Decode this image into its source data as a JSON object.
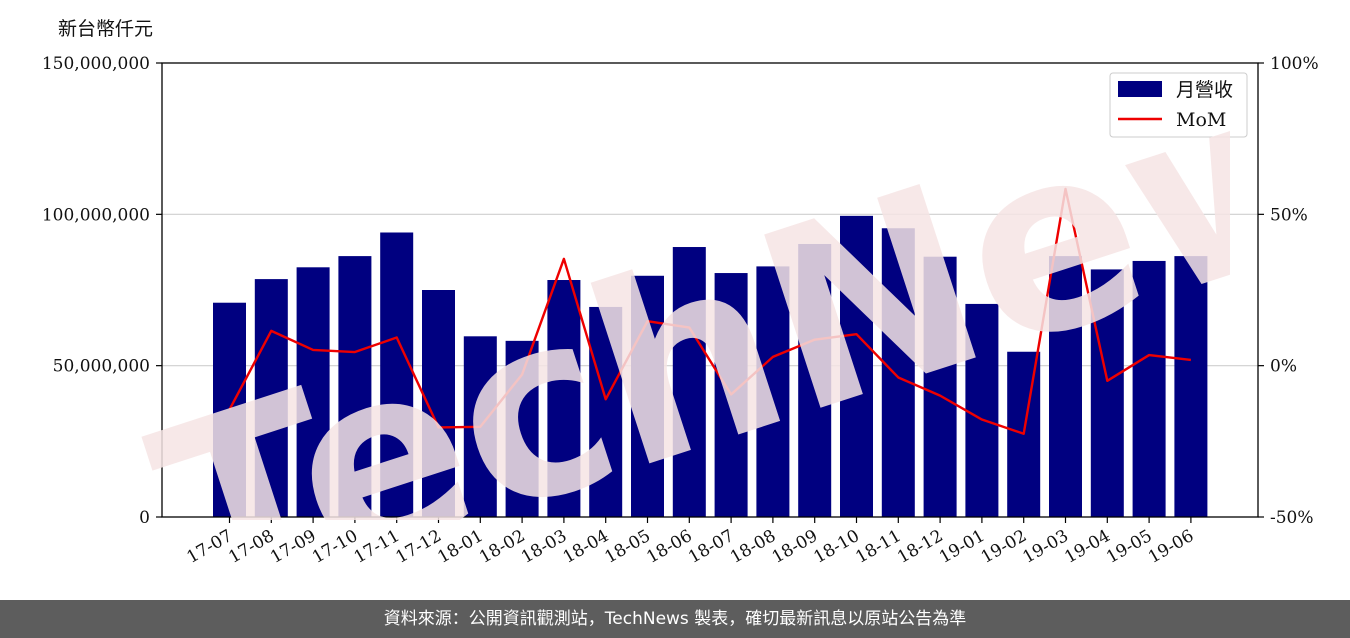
{
  "unit_label": "新台幣仟元",
  "footer": "資料來源：公開資訊觀測站，TechNews 製表，確切最新訊息以原站公告為準",
  "watermark": "TechNews",
  "chart_data": {
    "type": "bar",
    "categories": [
      "17-07",
      "17-08",
      "17-09",
      "17-10",
      "17-11",
      "17-12",
      "18-01",
      "18-02",
      "18-03",
      "18-04",
      "18-05",
      "18-06",
      "18-07",
      "18-08",
      "18-09",
      "18-10",
      "18-11",
      "18-12",
      "19-01",
      "19-02",
      "19-03",
      "19-04",
      "19-05",
      "19-06"
    ],
    "series": [
      {
        "name": "月營收",
        "axis": "left",
        "type": "bar",
        "color": "#000080",
        "values": [
          70800000,
          78600000,
          82500000,
          86200000,
          94000000,
          75000000,
          59700000,
          58200000,
          78300000,
          69400000,
          79700000,
          89200000,
          80600000,
          82800000,
          90200000,
          99500000,
          95400000,
          86000000,
          70400000,
          54600000,
          86200000,
          81800000,
          84600000,
          86200000
        ]
      },
      {
        "name": "MoM",
        "axis": "right",
        "type": "line",
        "color": "#ee0000",
        "values": [
          -14.5,
          11.5,
          5.2,
          4.5,
          9.3,
          -20.4,
          -20.2,
          -2.9,
          35.3,
          -11.1,
          14.7,
          12.6,
          -9.5,
          2.9,
          8.6,
          10.4,
          -3.9,
          -9.9,
          -17.8,
          -22.5,
          58.4,
          -5.0,
          3.5,
          1.9
        ]
      }
    ],
    "y_left": {
      "ticks": [
        "0",
        "50,000,000",
        "100,000,000",
        "150,000,000"
      ],
      "range": [
        0,
        150000000
      ]
    },
    "y_right": {
      "ticks": [
        "-50%",
        "0%",
        "50%",
        "100%"
      ],
      "range": [
        -50,
        100
      ]
    },
    "grid": "horizontal",
    "legend_position": "top-right"
  }
}
